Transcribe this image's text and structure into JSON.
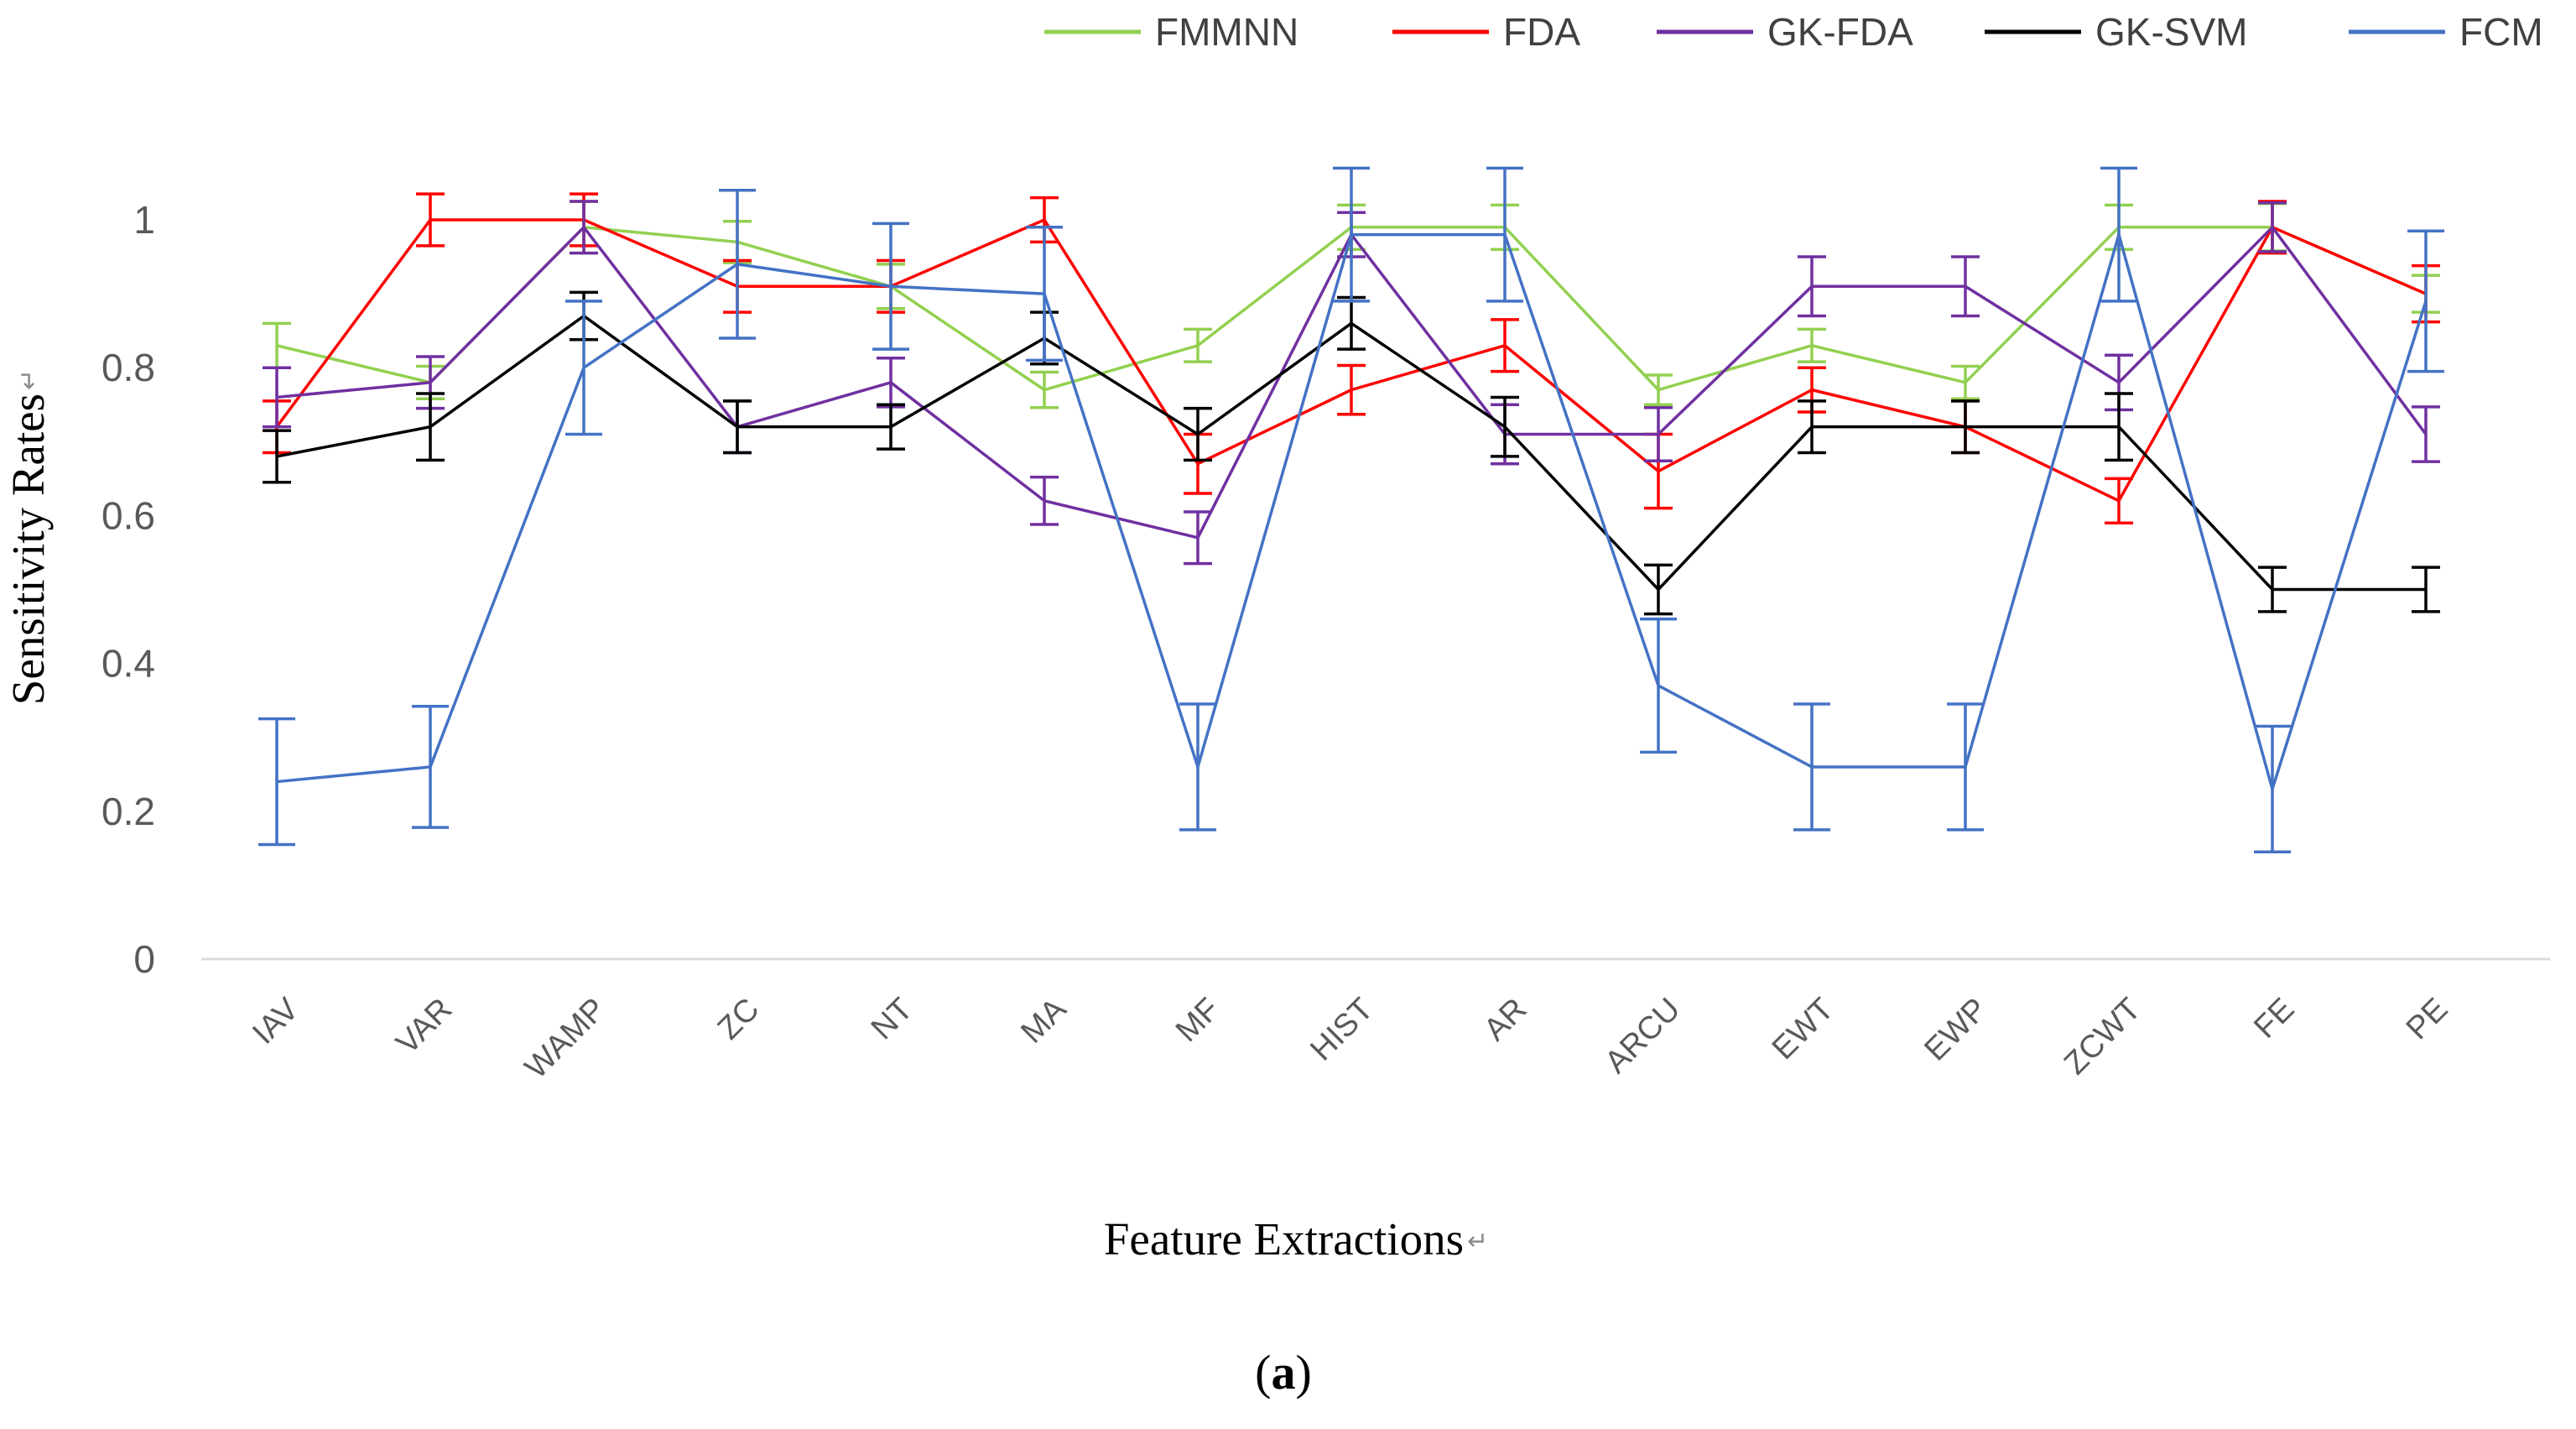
{
  "figure": {
    "y_title": "Sensitivity Rates",
    "x_title": "Feature Extractions",
    "caption_open": "(",
    "caption_letter": "a",
    "caption_close": ")",
    "return_mark": "↵"
  },
  "legend": {
    "position": "top",
    "items": [
      {
        "label": "FMMNN",
        "color": "#92D050"
      },
      {
        "label": "FDA",
        "color": "#FF0000"
      },
      {
        "label": "GK-FDA",
        "color": "#7030A0"
      },
      {
        "label": "GK-SVM",
        "color": "#000000"
      },
      {
        "label": "FCM",
        "color": "#4472C4"
      }
    ]
  },
  "chart_data": {
    "type": "line",
    "title": "",
    "xlabel": "Feature Extractions",
    "ylabel": "Sensitivity Rates",
    "grid": false,
    "error_bars": true,
    "legend_position": "top",
    "ylim": [
      0,
      1.1
    ],
    "y_ticks": [
      0,
      0.2,
      0.4,
      0.6,
      0.8,
      1
    ],
    "y_tick_labels": [
      "0",
      "0.2",
      "0.4",
      "0.6",
      "0.8",
      "1"
    ],
    "categories": [
      "IAV",
      "VAR",
      "WAMP",
      "ZC",
      "NT",
      "MA",
      "MF",
      "HIST",
      "AR",
      "ARCU",
      "EWT",
      "EWP",
      "ZCWT",
      "FE",
      "PE"
    ],
    "series": [
      {
        "name": "FMMNN",
        "color": "#92D050",
        "values": [
          0.83,
          0.78,
          0.99,
          0.97,
          0.91,
          0.77,
          0.83,
          0.99,
          0.99,
          0.77,
          0.83,
          0.78,
          0.99,
          0.99,
          0.9
        ],
        "errors": [
          0.03,
          0.022,
          0.035,
          0.028,
          0.03,
          0.024,
          0.022,
          0.03,
          0.03,
          0.02,
          0.022,
          0.022,
          0.03,
          0.032,
          0.025
        ]
      },
      {
        "name": "FDA",
        "color": "#FF0000",
        "values": [
          0.72,
          1.0,
          1.0,
          0.91,
          0.91,
          1.0,
          0.67,
          0.77,
          0.83,
          0.66,
          0.77,
          0.72,
          0.62,
          0.99,
          0.9
        ],
        "errors": [
          0.035,
          0.035,
          0.035,
          0.035,
          0.035,
          0.03,
          0.04,
          0.033,
          0.035,
          0.05,
          0.03,
          0.035,
          0.03,
          0.035,
          0.038
        ]
      },
      {
        "name": "GK-FDA",
        "color": "#7030A0",
        "values": [
          0.76,
          0.78,
          0.99,
          0.72,
          0.78,
          0.62,
          0.57,
          0.98,
          0.71,
          0.71,
          0.91,
          0.91,
          0.78,
          0.99,
          0.71
        ],
        "errors": [
          0.04,
          0.035,
          0.035,
          0.035,
          0.033,
          0.032,
          0.035,
          0.03,
          0.04,
          0.036,
          0.04,
          0.04,
          0.037,
          0.033,
          0.037
        ]
      },
      {
        "name": "GK-SVM",
        "color": "#000000",
        "values": [
          0.68,
          0.72,
          0.87,
          0.72,
          0.72,
          0.84,
          0.71,
          0.86,
          0.72,
          0.5,
          0.72,
          0.72,
          0.72,
          0.5,
          0.5
        ],
        "errors": [
          0.035,
          0.045,
          0.032,
          0.035,
          0.03,
          0.035,
          0.035,
          0.035,
          0.04,
          0.033,
          0.035,
          0.035,
          0.045,
          0.03,
          0.03
        ]
      },
      {
        "name": "FCM",
        "color": "#4472C4",
        "values": [
          0.24,
          0.26,
          0.8,
          0.94,
          0.91,
          0.9,
          0.26,
          0.98,
          0.98,
          0.37,
          0.26,
          0.26,
          0.98,
          0.23,
          0.89
        ],
        "errors": [
          0.085,
          0.082,
          0.09,
          0.1,
          0.085,
          0.09,
          0.085,
          0.09,
          0.09,
          0.09,
          0.085,
          0.085,
          0.09,
          0.085,
          0.095
        ]
      }
    ]
  },
  "style": {
    "tick_color": "#595959",
    "axis_line_color": "#D9D9D9",
    "legend_text_color": "#404040",
    "title_color": "#000000",
    "return_mark_color": "#8C8C8C"
  }
}
